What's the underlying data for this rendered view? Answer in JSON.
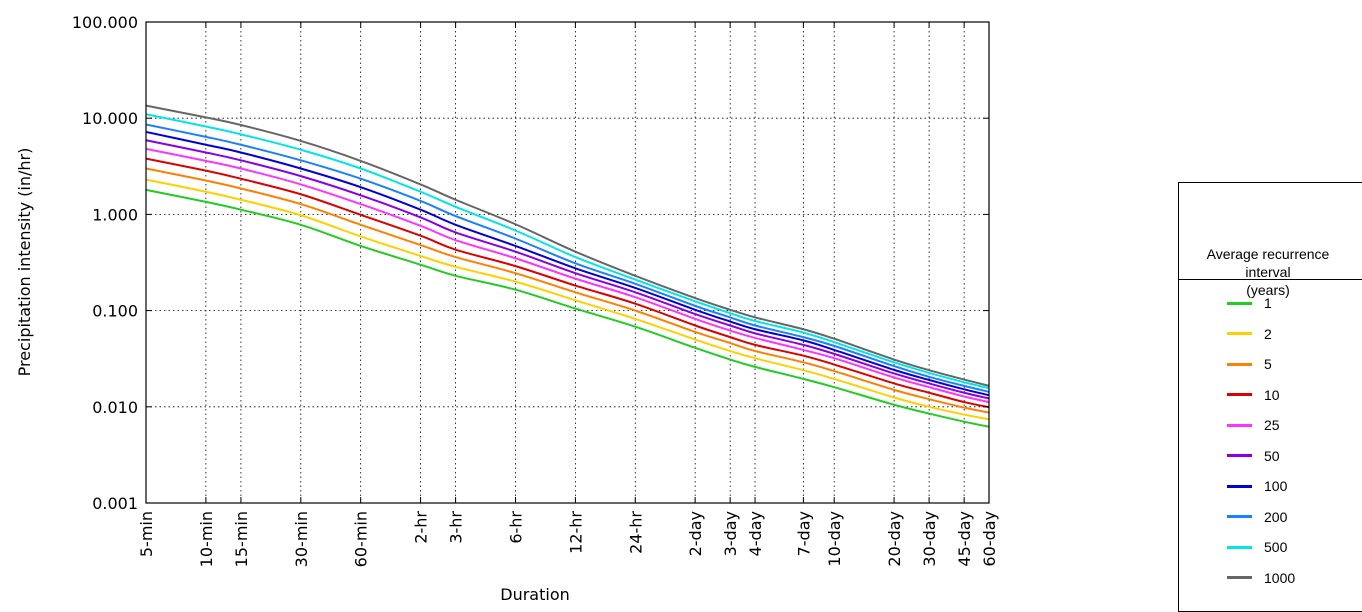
{
  "chart_data": {
    "type": "line",
    "title": "",
    "xlabel": "Duration",
    "ylabel": "Precipitation intensity (in/hr)",
    "yscale": "log",
    "ylim": [
      0.001,
      100
    ],
    "yticks": [
      "100.000",
      "10.000",
      "1.000",
      "0.100",
      "0.010",
      "0.001"
    ],
    "grid": true,
    "x": [
      "5-min",
      "10-min",
      "15-min",
      "30-min",
      "60-min",
      "2-hr",
      "3-hr",
      "6-hr",
      "12-hr",
      "24-hr",
      "2-day",
      "3-day",
      "4-day",
      "7-day",
      "10-day",
      "20-day",
      "30-day",
      "45-day",
      "60-day"
    ],
    "x_minutes": [
      5,
      10,
      15,
      30,
      60,
      120,
      180,
      360,
      720,
      1440,
      2880,
      4320,
      5760,
      10080,
      14400,
      28800,
      43200,
      64800,
      86400
    ],
    "series": [
      {
        "name": "1",
        "color": "#22cc22",
        "values": [
          1.8,
          1.35,
          1.12,
          0.78,
          0.47,
          0.3,
          0.23,
          0.165,
          0.105,
          0.068,
          0.041,
          0.031,
          0.026,
          0.0195,
          0.016,
          0.0105,
          0.0085,
          0.007,
          0.0062
        ]
      },
      {
        "name": "2",
        "color": "#ffd000",
        "values": [
          2.3,
          1.72,
          1.42,
          0.98,
          0.59,
          0.37,
          0.285,
          0.2,
          0.128,
          0.082,
          0.05,
          0.038,
          0.032,
          0.024,
          0.0195,
          0.0125,
          0.01,
          0.0083,
          0.0074
        ]
      },
      {
        "name": "5",
        "color": "#ff8000",
        "values": [
          3.0,
          2.25,
          1.86,
          1.28,
          0.78,
          0.48,
          0.36,
          0.245,
          0.155,
          0.1,
          0.06,
          0.046,
          0.038,
          0.029,
          0.0235,
          0.015,
          0.012,
          0.0098,
          0.0087
        ]
      },
      {
        "name": "10",
        "color": "#dd0000",
        "values": [
          3.8,
          2.85,
          2.35,
          1.62,
          0.99,
          0.6,
          0.43,
          0.29,
          0.182,
          0.118,
          0.07,
          0.053,
          0.044,
          0.034,
          0.0275,
          0.0175,
          0.014,
          0.0112,
          0.0099
        ]
      },
      {
        "name": "25",
        "color": "#ff33ff",
        "values": [
          4.8,
          3.6,
          3.0,
          2.05,
          1.28,
          0.76,
          0.54,
          0.35,
          0.215,
          0.138,
          0.082,
          0.062,
          0.052,
          0.039,
          0.032,
          0.0202,
          0.016,
          0.0128,
          0.0112
        ]
      },
      {
        "name": "50",
        "color": "#8a00e6",
        "values": [
          5.9,
          4.4,
          3.65,
          2.5,
          1.58,
          0.93,
          0.65,
          0.41,
          0.245,
          0.155,
          0.092,
          0.07,
          0.058,
          0.044,
          0.0355,
          0.0222,
          0.0175,
          0.014,
          0.0122
        ]
      },
      {
        "name": "100",
        "color": "#0000dd",
        "values": [
          7.2,
          5.3,
          4.4,
          3.0,
          1.92,
          1.12,
          0.78,
          0.47,
          0.275,
          0.172,
          0.102,
          0.077,
          0.064,
          0.049,
          0.039,
          0.0242,
          0.019,
          0.0152,
          0.0132
        ]
      },
      {
        "name": "200",
        "color": "#1a80ff",
        "values": [
          8.6,
          6.4,
          5.3,
          3.65,
          2.35,
          1.38,
          0.96,
          0.56,
          0.31,
          0.19,
          0.112,
          0.085,
          0.07,
          0.053,
          0.043,
          0.0265,
          0.0205,
          0.0165,
          0.0143
        ]
      },
      {
        "name": "500",
        "color": "#00e5e5",
        "values": [
          11.0,
          8.2,
          6.8,
          4.7,
          3.0,
          1.72,
          1.2,
          0.68,
          0.36,
          0.21,
          0.125,
          0.094,
          0.078,
          0.059,
          0.047,
          0.029,
          0.0225,
          0.018,
          0.0156
        ]
      },
      {
        "name": "1000",
        "color": "#666666",
        "values": [
          13.5,
          10.2,
          8.5,
          5.8,
          3.6,
          2.05,
          1.42,
          0.79,
          0.41,
          0.23,
          0.135,
          0.102,
          0.085,
          0.064,
          0.051,
          0.031,
          0.024,
          0.0192,
          0.0165
        ]
      }
    ]
  },
  "legend": {
    "title_lines": [
      "Average recurrence",
      "interval",
      "(years)"
    ]
  }
}
